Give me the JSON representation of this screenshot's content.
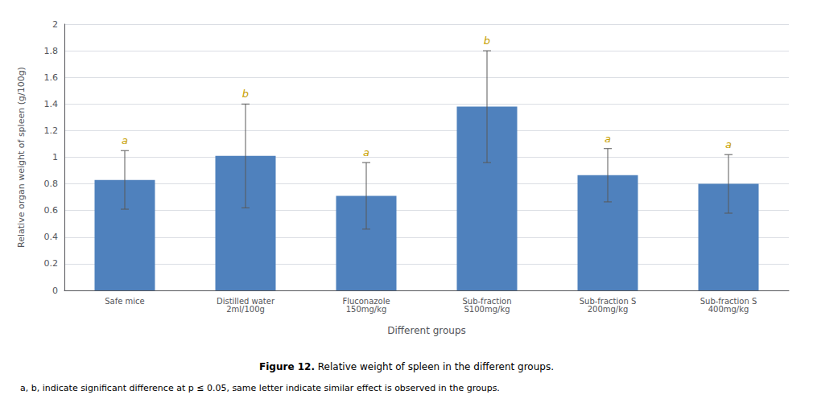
{
  "chart_data": {
    "type": "bar",
    "categories": [
      "Safe mice",
      "Distilled water\n2ml/100g",
      "Fluconazole\n150mg/kg",
      "Sub-fraction\nS100mg/kg",
      "Sub-fraction S\n200mg/kg",
      "Sub-fraction S\n400mg/kg"
    ],
    "values": [
      0.83,
      1.01,
      0.71,
      1.38,
      0.865,
      0.8
    ],
    "errors": [
      0.22,
      0.39,
      0.25,
      0.42,
      0.2,
      0.22
    ],
    "letters": [
      "a",
      "b",
      "a",
      "b",
      "a",
      "a"
    ],
    "color": "#4F81BD",
    "ylim": [
      0,
      2.0
    ],
    "yticks": [
      0,
      0.2,
      0.4,
      0.6,
      0.8,
      1,
      1.2,
      1.4,
      1.6,
      1.8,
      2
    ],
    "ylabel": "Relative organ weight of spleen (g/100g)",
    "xlabel": "Different groups",
    "caption_label": "Figure 12.",
    "caption": "Relative weight of spleen in the different groups.",
    "note": "a, b, indicate significant difference at p ≤ 0.05, same letter indicate similar effect is observed in the groups.",
    "grid": true
  }
}
